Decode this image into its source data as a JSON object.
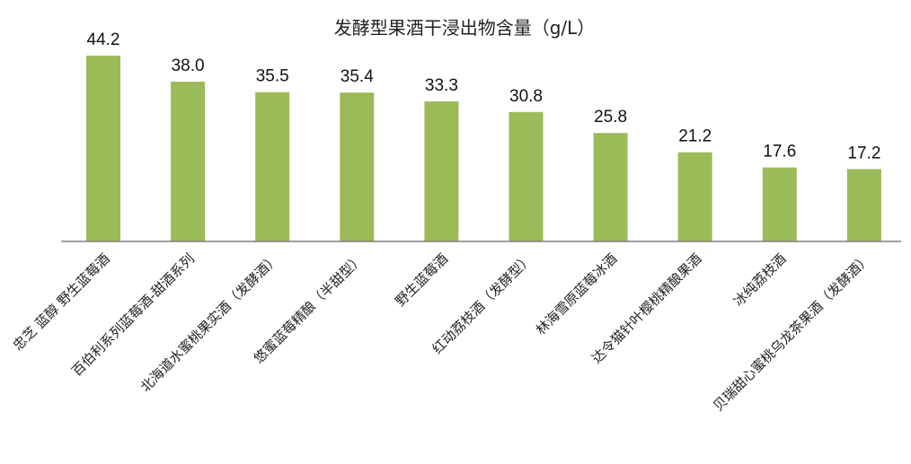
{
  "chart_data": {
    "type": "bar",
    "title": "发酵型果酒干浸出物含量（g/L）",
    "xlabel": "",
    "ylabel": "",
    "categories": [
      "忠芝 蓝醇 野生蓝莓酒",
      "百伯利系列蓝莓酒-甜酒系列",
      "北海道水蜜桃果实酒（发酵酒）",
      "悠蜜蓝莓精酿（半甜型）",
      "野生蓝莓酒",
      "红动荔枝酒（发酵型）",
      "林海雪原蓝莓冰酒",
      "达令猫针叶樱桃精酿果酒",
      "冰纯荔枝酒",
      "贝瑞甜心蜜桃乌龙茶果酒（发酵酒）"
    ],
    "values": [
      44.2,
      38.0,
      35.5,
      35.4,
      33.3,
      30.8,
      25.8,
      21.2,
      17.6,
      17.2
    ],
    "value_labels": [
      "44.2",
      "38.0",
      "35.5",
      "35.4",
      "33.3",
      "30.8",
      "25.8",
      "21.2",
      "17.6",
      "17.2"
    ],
    "ylim": [
      0,
      44.2
    ],
    "grid": false,
    "legend": "none",
    "bar_color": "#9bbb59",
    "axis_color": "#7f7f7f"
  }
}
